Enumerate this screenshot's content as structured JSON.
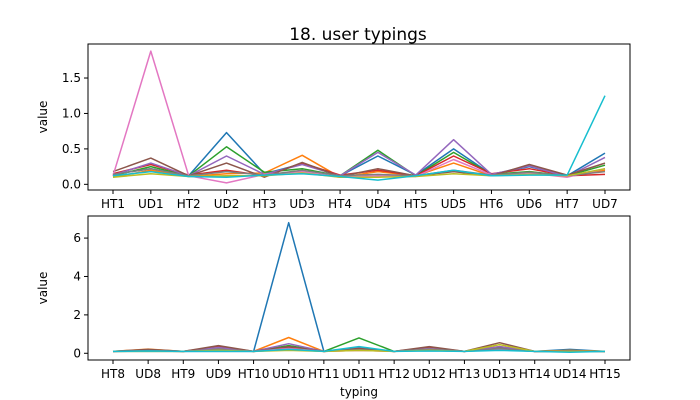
{
  "figure": {
    "title": "18. user typings"
  },
  "chart_data": [
    {
      "type": "line",
      "title": "18. user typings",
      "xlabel": "",
      "ylabel": "value",
      "categories": [
        "HT1",
        "UD1",
        "HT2",
        "UD2",
        "HT3",
        "UD3",
        "HT4",
        "UD4",
        "HT5",
        "UD5",
        "HT6",
        "UD6",
        "HT7",
        "UD7"
      ],
      "ylim": [
        -0.08,
        1.98
      ],
      "yticks": [
        0.0,
        0.5,
        1.0,
        1.5
      ],
      "ytick_labels": [
        "0.0",
        "0.5",
        "1.0",
        "1.5"
      ],
      "series": [
        {
          "color": "#1f77b4",
          "values": [
            0.14,
            0.22,
            0.12,
            0.73,
            0.15,
            0.29,
            0.12,
            0.4,
            0.13,
            0.5,
            0.14,
            0.25,
            0.12,
            0.44
          ]
        },
        {
          "color": "#ff7f0e",
          "values": [
            0.1,
            0.2,
            0.11,
            0.15,
            0.16,
            0.41,
            0.1,
            0.18,
            0.12,
            0.3,
            0.12,
            0.18,
            0.11,
            0.2
          ]
        },
        {
          "color": "#2ca02c",
          "values": [
            0.12,
            0.25,
            0.12,
            0.53,
            0.17,
            0.22,
            0.12,
            0.48,
            0.12,
            0.45,
            0.14,
            0.18,
            0.12,
            0.27
          ]
        },
        {
          "color": "#d62728",
          "values": [
            0.15,
            0.28,
            0.13,
            0.2,
            0.12,
            0.3,
            0.13,
            0.2,
            0.12,
            0.4,
            0.15,
            0.22,
            0.12,
            0.14
          ]
        },
        {
          "color": "#9467bd",
          "values": [
            0.13,
            0.3,
            0.12,
            0.4,
            0.14,
            0.28,
            0.12,
            0.45,
            0.13,
            0.63,
            0.14,
            0.26,
            0.11,
            0.38
          ]
        },
        {
          "color": "#8c564b",
          "values": [
            0.18,
            0.37,
            0.12,
            0.3,
            0.1,
            0.31,
            0.11,
            0.22,
            0.12,
            0.18,
            0.12,
            0.28,
            0.13,
            0.3
          ]
        },
        {
          "color": "#e377c2",
          "values": [
            0.12,
            1.88,
            0.12,
            0.02,
            0.14,
            0.18,
            0.1,
            0.12,
            0.11,
            0.35,
            0.13,
            0.16,
            0.1,
            0.22
          ]
        },
        {
          "color": "#7f7f7f",
          "values": [
            0.14,
            0.22,
            0.12,
            0.18,
            0.13,
            0.2,
            0.12,
            0.14,
            0.12,
            0.2,
            0.13,
            0.17,
            0.12,
            0.18
          ]
        },
        {
          "color": "#bcbd22",
          "values": [
            0.1,
            0.15,
            0.11,
            0.12,
            0.12,
            0.16,
            0.1,
            0.1,
            0.11,
            0.15,
            0.12,
            0.14,
            0.12,
            0.22
          ]
        },
        {
          "color": "#17becf",
          "values": [
            0.12,
            0.18,
            0.11,
            0.1,
            0.13,
            0.15,
            0.11,
            0.06,
            0.12,
            0.2,
            0.12,
            0.13,
            0.13,
            1.25
          ]
        }
      ]
    },
    {
      "type": "line",
      "title": "",
      "xlabel": "typing",
      "ylabel": "value",
      "categories": [
        "HT8",
        "UD8",
        "HT9",
        "UD9",
        "HT10",
        "UD10",
        "HT11",
        "UD11",
        "HT12",
        "UD12",
        "HT13",
        "UD13",
        "HT14",
        "UD14",
        "HT15"
      ],
      "ylim": [
        -0.35,
        7.15
      ],
      "yticks": [
        0,
        2,
        4,
        6
      ],
      "ytick_labels": [
        "0",
        "2",
        "4",
        "6"
      ],
      "series": [
        {
          "color": "#1f77b4",
          "values": [
            0.1,
            0.1,
            0.1,
            0.1,
            0.1,
            6.8,
            0.1,
            0.2,
            0.1,
            0.2,
            0.1,
            0.2,
            0.1,
            0.2,
            0.1
          ]
        },
        {
          "color": "#ff7f0e",
          "values": [
            0.1,
            0.22,
            0.1,
            0.2,
            0.1,
            0.82,
            0.1,
            0.15,
            0.1,
            0.2,
            0.1,
            0.35,
            0.1,
            0.15,
            0.1
          ]
        },
        {
          "color": "#2ca02c",
          "values": [
            0.1,
            0.12,
            0.1,
            0.25,
            0.1,
            0.4,
            0.1,
            0.8,
            0.1,
            0.25,
            0.1,
            0.3,
            0.1,
            0.1,
            0.1
          ]
        },
        {
          "color": "#d62728",
          "values": [
            0.1,
            0.15,
            0.1,
            0.35,
            0.1,
            0.3,
            0.1,
            0.2,
            0.1,
            0.3,
            0.1,
            0.25,
            0.1,
            0.1,
            0.1
          ]
        },
        {
          "color": "#9467bd",
          "values": [
            0.1,
            0.18,
            0.1,
            0.3,
            0.1,
            0.5,
            0.1,
            0.3,
            0.1,
            0.25,
            0.1,
            0.35,
            0.1,
            0.12,
            0.1
          ]
        },
        {
          "color": "#8c564b",
          "values": [
            0.1,
            0.2,
            0.1,
            0.4,
            0.1,
            0.35,
            0.1,
            0.25,
            0.1,
            0.35,
            0.1,
            0.55,
            0.1,
            0.12,
            0.1
          ]
        },
        {
          "color": "#e377c2",
          "values": [
            0.1,
            0.12,
            0.1,
            0.2,
            0.1,
            0.25,
            0.1,
            0.15,
            0.1,
            0.2,
            0.1,
            0.2,
            0.1,
            0.1,
            0.1
          ]
        },
        {
          "color": "#7f7f7f",
          "values": [
            0.1,
            0.14,
            0.1,
            0.2,
            0.1,
            0.2,
            0.1,
            0.18,
            0.1,
            0.22,
            0.1,
            0.25,
            0.1,
            0.12,
            0.1
          ]
        },
        {
          "color": "#bcbd22",
          "values": [
            0.1,
            0.1,
            0.1,
            0.15,
            0.1,
            0.15,
            0.1,
            0.15,
            0.1,
            0.15,
            0.1,
            0.45,
            0.1,
            0.1,
            0.1
          ]
        },
        {
          "color": "#17becf",
          "values": [
            0.1,
            0.12,
            0.1,
            0.1,
            0.1,
            0.2,
            0.1,
            0.35,
            0.1,
            0.12,
            0.1,
            0.15,
            0.1,
            0.05,
            0.1
          ]
        }
      ]
    }
  ]
}
